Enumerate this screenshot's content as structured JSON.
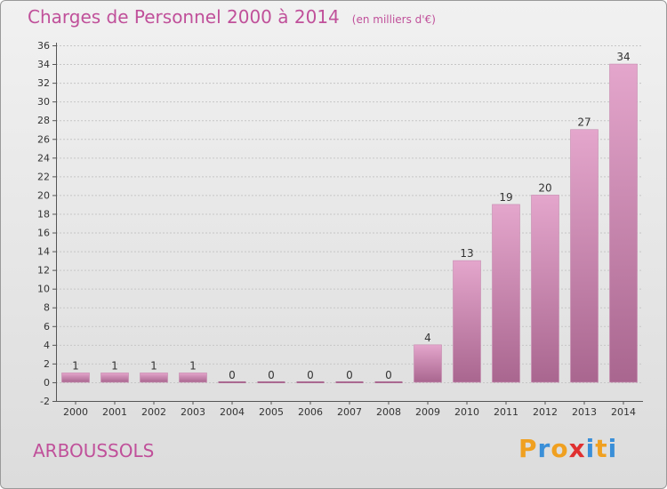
{
  "title": "Charges de Personnel 2000 à 2014",
  "subtitle": "(en milliers d'€)",
  "commune": "ARBOUSSOLS",
  "brand": {
    "letters": [
      "P",
      "r",
      "o",
      "x",
      "i",
      "t",
      "i"
    ],
    "colors": [
      "#f0a020",
      "#3a8fd8",
      "#f0a020",
      "#e03030",
      "#3a8fd8",
      "#f0a020",
      "#3a8fd8"
    ]
  },
  "colors": {
    "accent": "#c0509a",
    "bar_top": "#e4a6cc",
    "bar_bottom": "#a9668f",
    "grid": "#c6c6c6",
    "axis": "#555555"
  },
  "chart_data": {
    "type": "bar",
    "categories": [
      "2000",
      "2001",
      "2002",
      "2003",
      "2004",
      "2005",
      "2006",
      "2007",
      "2008",
      "2009",
      "2010",
      "2011",
      "2012",
      "2013",
      "2014"
    ],
    "values": [
      1,
      1,
      1,
      1,
      0,
      0,
      0,
      0,
      0,
      4,
      13,
      19,
      20,
      27,
      34
    ],
    "ylim": [
      -2,
      36
    ],
    "yticks": [
      -2,
      0,
      2,
      4,
      6,
      8,
      10,
      12,
      14,
      16,
      18,
      20,
      22,
      24,
      26,
      28,
      30,
      32,
      34,
      36
    ],
    "grid": true,
    "data_labels": true,
    "xlabel": "",
    "ylabel": ""
  }
}
